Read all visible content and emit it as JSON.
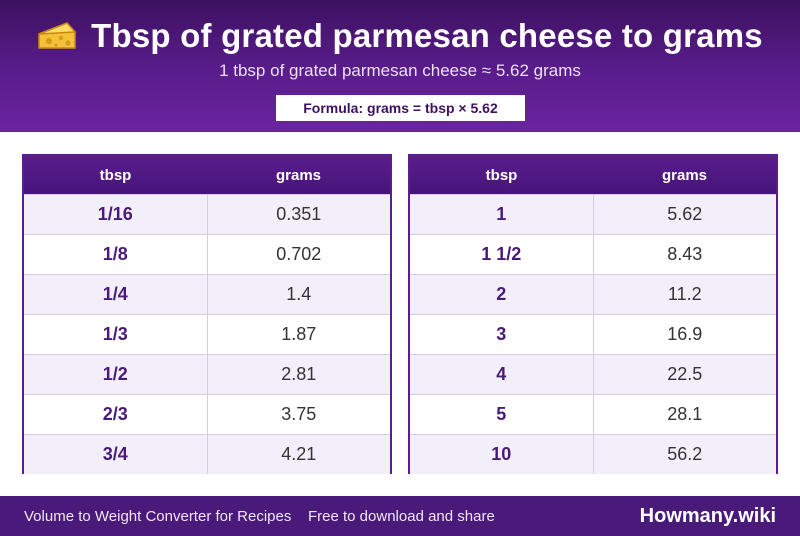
{
  "header": {
    "icon": "cheese-icon",
    "title": "Tbsp of grated parmesan cheese to grams",
    "subtitle": "1 tbsp of grated parmesan cheese ≈ 5.62 grams",
    "formula": "Formula: grams = tbsp × 5.62"
  },
  "tables": {
    "left": {
      "col_tbsp": "tbsp",
      "col_grams": "grams",
      "rows": [
        {
          "tbsp": "1/16",
          "grams": "0.351"
        },
        {
          "tbsp": "1/8",
          "grams": "0.702"
        },
        {
          "tbsp": "1/4",
          "grams": "1.4"
        },
        {
          "tbsp": "1/3",
          "grams": "1.87"
        },
        {
          "tbsp": "1/2",
          "grams": "2.81"
        },
        {
          "tbsp": "2/3",
          "grams": "3.75"
        },
        {
          "tbsp": "3/4",
          "grams": "4.21"
        }
      ]
    },
    "right": {
      "col_tbsp": "tbsp",
      "col_grams": "grams",
      "rows": [
        {
          "tbsp": "1",
          "grams": "5.62"
        },
        {
          "tbsp": "1 1/2",
          "grams": "8.43"
        },
        {
          "tbsp": "2",
          "grams": "11.2"
        },
        {
          "tbsp": "3",
          "grams": "16.9"
        },
        {
          "tbsp": "4",
          "grams": "22.5"
        },
        {
          "tbsp": "5",
          "grams": "28.1"
        },
        {
          "tbsp": "10",
          "grams": "56.2"
        }
      ]
    }
  },
  "footer": {
    "left_text": "Volume to Weight Converter for Recipes",
    "mid_text": "Free to download and share",
    "brand": "Howmany.wiki"
  },
  "colors": {
    "primary": "#5a1d8c",
    "dark": "#3d1160",
    "row_alt": "#f3effa"
  }
}
